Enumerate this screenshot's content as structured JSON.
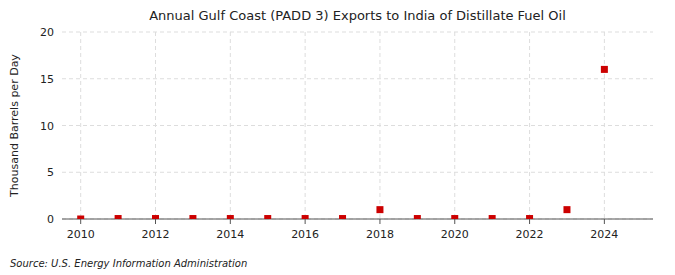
{
  "chart_data": {
    "type": "scatter",
    "title": "Annual Gulf Coast (PADD 3) Exports to India of Distillate Fuel Oil",
    "y_label": "Thousand Barrels per Day",
    "source": "Source: U.S. Energy Information Administration",
    "x": [
      2010,
      2011,
      2012,
      2013,
      2014,
      2015,
      2016,
      2017,
      2018,
      2019,
      2020,
      2021,
      2022,
      2023,
      2024
    ],
    "values": [
      0.0,
      0.05,
      0.05,
      0.05,
      0.05,
      0.05,
      0.05,
      0.05,
      1.0,
      0.05,
      0.05,
      0.05,
      0.05,
      1.0,
      16.0
    ],
    "color": "#cc0000",
    "marker": "square",
    "xlim": [
      2009.5,
      2025.3
    ],
    "xticks": [
      2010,
      2012,
      2014,
      2016,
      2018,
      2020,
      2022,
      2024
    ],
    "ylim": [
      0,
      20
    ],
    "yticks": [
      0,
      5,
      10,
      15,
      20
    ],
    "grid": true
  }
}
